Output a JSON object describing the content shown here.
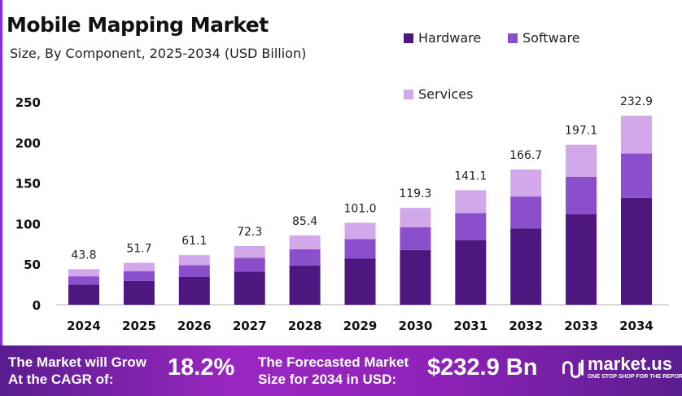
{
  "chart_data": {
    "type": "bar",
    "stacked": true,
    "title": "Mobile Mapping Market",
    "subtitle": "Size, By Component, 2025-2034 (USD Billion)",
    "xlabel": "",
    "ylabel": "",
    "ylim": [
      0,
      250
    ],
    "yticks": [
      0,
      50,
      100,
      150,
      200,
      250
    ],
    "grid": false,
    "legend_position": "top-right",
    "categories": [
      "2024",
      "2025",
      "2026",
      "2027",
      "2028",
      "2029",
      "2030",
      "2031",
      "2032",
      "2033",
      "2034"
    ],
    "totals": [
      "43.8",
      "51.7",
      "61.1",
      "72.3",
      "85.4",
      "101.0",
      "119.3",
      "141.1",
      "166.7",
      "197.1",
      "232.9"
    ],
    "series": [
      {
        "name": "Hardware",
        "color": "#4e1780",
        "values": [
          24.7,
          29.2,
          34.5,
          40.8,
          48.3,
          57.1,
          67.4,
          79.7,
          94.2,
          111.4,
          131.6
        ]
      },
      {
        "name": "Software",
        "color": "#8b4fcb",
        "values": [
          10.3,
          12.2,
          14.4,
          17.0,
          20.1,
          23.7,
          28.0,
          33.2,
          39.2,
          46.3,
          54.7
        ]
      },
      {
        "name": "Services",
        "color": "#d3a8ea",
        "values": [
          8.8,
          10.3,
          12.2,
          14.5,
          17.0,
          20.2,
          23.9,
          28.2,
          33.3,
          39.4,
          46.6
        ]
      }
    ]
  },
  "footer": {
    "cagr_label_line1": "The Market will Grow",
    "cagr_label_line2": "At the CAGR of:",
    "cagr_value": "18.2%",
    "forecast_label_line1": "The Forecasted Market",
    "forecast_label_line2": "Size for 2034 in USD:",
    "forecast_value": "$232.9 Bn",
    "logo_name": "market.us",
    "logo_tagline": "ONE STOP SHOP FOR THE REPORTS"
  }
}
